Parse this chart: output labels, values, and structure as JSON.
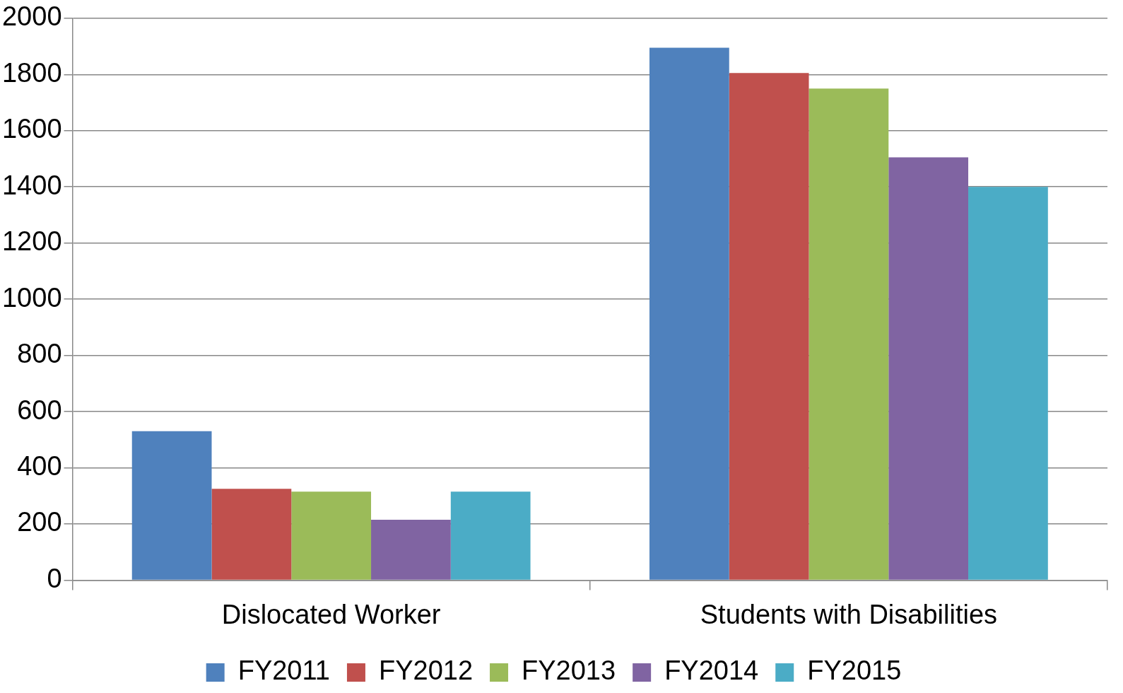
{
  "chart_data": {
    "type": "bar",
    "categories": [
      "Dislocated Worker",
      "Students with Disabilities"
    ],
    "series": [
      {
        "name": "FY2011",
        "color": "#4f81bd",
        "values": [
          530,
          1895
        ]
      },
      {
        "name": "FY2012",
        "color": "#c0504d",
        "values": [
          325,
          1805
        ]
      },
      {
        "name": "FY2013",
        "color": "#9bbb59",
        "values": [
          315,
          1750
        ]
      },
      {
        "name": "FY2014",
        "color": "#8064a2",
        "values": [
          215,
          1505
        ]
      },
      {
        "name": "FY2015",
        "color": "#4bacc6",
        "values": [
          315,
          1400
        ]
      }
    ],
    "ylim": [
      0,
      2000
    ],
    "yticks": [
      0,
      200,
      400,
      600,
      800,
      1000,
      1200,
      1400,
      1600,
      1800,
      2000
    ],
    "grid": "y",
    "legend": "bottom"
  }
}
